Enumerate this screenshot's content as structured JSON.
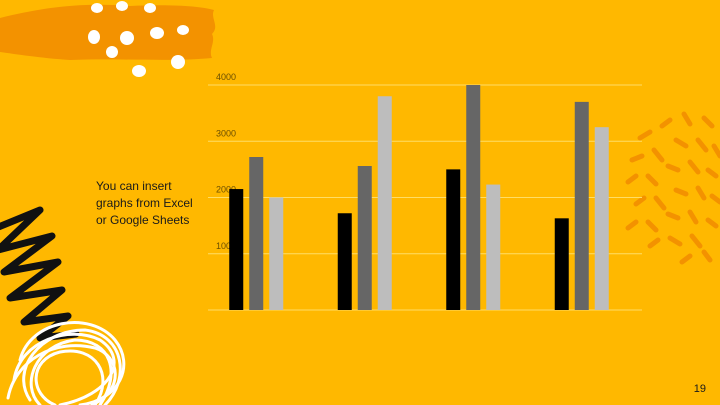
{
  "slide": {
    "caption_lines": [
      "You can insert",
      "graphs from Excel",
      "or Google Sheets"
    ],
    "page_number": "19",
    "colors": {
      "background": "#FFB800",
      "accent_orange": "#F39200",
      "dots": "#FFFFFF",
      "scribble": "#111111",
      "gridline": "#FFDD66",
      "axis_text": "#6b4f00"
    },
    "decorations": [
      "orange-brush-stroke",
      "white-dots",
      "black-zigzag-scribble",
      "white-circle-scribble",
      "orange-dash-pattern"
    ]
  },
  "chart_data": {
    "type": "bar",
    "title": "",
    "xlabel": "",
    "ylabel": "",
    "categories": [
      "",
      "",
      "",
      ""
    ],
    "series": [
      {
        "values": [
          2150,
          1720,
          2500,
          1630
        ],
        "color": "#000000"
      },
      {
        "values": [
          2720,
          2560,
          4000,
          3700
        ],
        "color": "#666666"
      },
      {
        "values": [
          2000,
          3800,
          2230,
          3250
        ],
        "color": "#BDBDBD"
      }
    ],
    "ylim": [
      0,
      4000
    ],
    "yticks": [
      0,
      1000,
      2000,
      3000,
      4000
    ],
    "grid": true,
    "legend": "none"
  }
}
